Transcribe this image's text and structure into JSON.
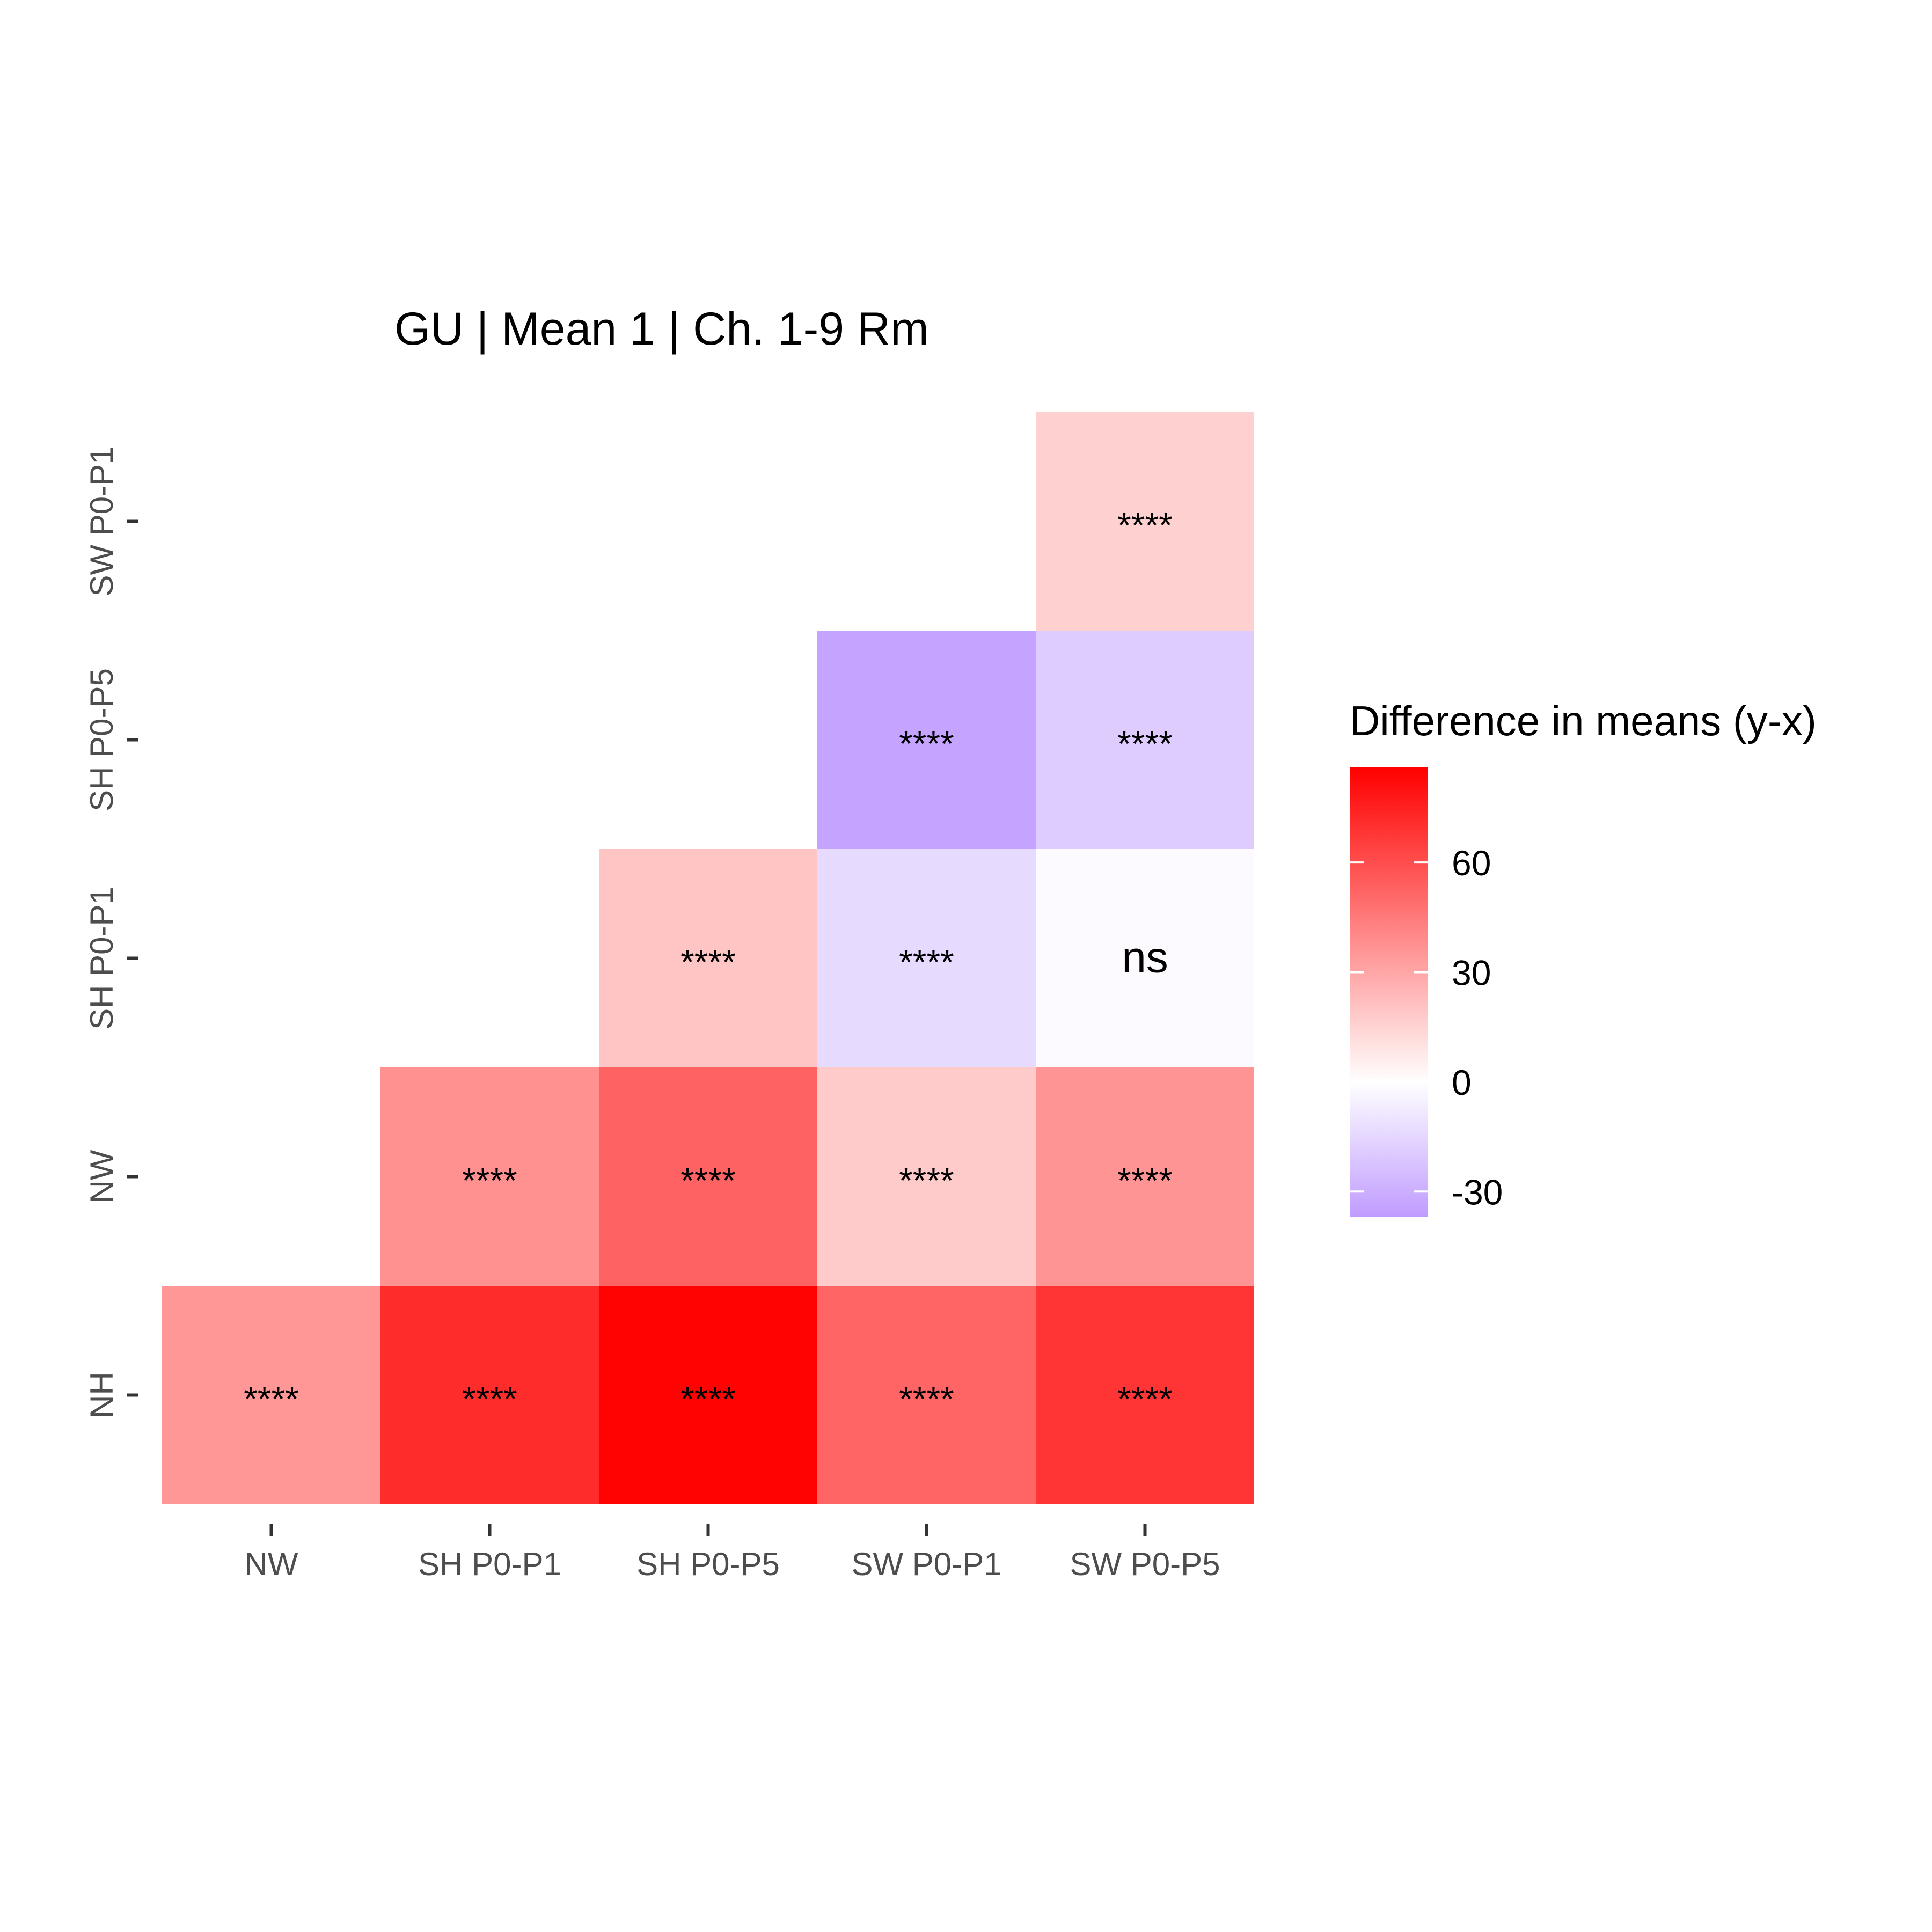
{
  "chart_data": {
    "type": "heatmap",
    "title": "GU | Mean 1 | Ch. 1-9 Rm",
    "x_categories": [
      "NW",
      "SH P0-P1",
      "SH P0-P5",
      "SW P0-P1",
      "SW P0-P5"
    ],
    "y_categories": [
      "NH",
      "NW",
      "SH P0-P1",
      "SH P0-P5",
      "SW P0-P1"
    ],
    "cells": [
      {
        "x": "NW",
        "y": "NH",
        "value": 35,
        "label": "****"
      },
      {
        "x": "SH P0-P1",
        "y": "NH",
        "value": 71,
        "label": "****"
      },
      {
        "x": "SH P0-P5",
        "y": "NH",
        "value": 85,
        "label": "****"
      },
      {
        "x": "SW P0-P1",
        "y": "NH",
        "value": 52,
        "label": "****"
      },
      {
        "x": "SW P0-P5",
        "y": "NH",
        "value": 68,
        "label": "****"
      },
      {
        "x": "SH P0-P1",
        "y": "NW",
        "value": 37,
        "label": "****"
      },
      {
        "x": "SH P0-P5",
        "y": "NW",
        "value": 53,
        "label": "****"
      },
      {
        "x": "SW P0-P1",
        "y": "NW",
        "value": 18,
        "label": "****"
      },
      {
        "x": "SW P0-P5",
        "y": "NW",
        "value": 36,
        "label": "****"
      },
      {
        "x": "SH P0-P5",
        "y": "SH P0-P1",
        "value": 20,
        "label": "****"
      },
      {
        "x": "SW P0-P1",
        "y": "SH P0-P1",
        "value": -14,
        "label": "****"
      },
      {
        "x": "SW P0-P5",
        "y": "SH P0-P1",
        "value": -2,
        "label": "ns"
      },
      {
        "x": "SW P0-P1",
        "y": "SH P0-P5",
        "value": -34,
        "label": "****"
      },
      {
        "x": "SW P0-P5",
        "y": "SH P0-P5",
        "value": -19,
        "label": "****"
      },
      {
        "x": "SW P0-P5",
        "y": "SW P0-P1",
        "value": 16,
        "label": "****"
      }
    ],
    "legend": {
      "title": "Difference in means (y-x)",
      "ticks": [
        60,
        30,
        0,
        -30
      ],
      "range": [
        -37,
        86
      ],
      "placement": "right"
    },
    "colors": {
      "low": "#c09cff",
      "mid": "#ffffff",
      "high": "#ff0000"
    },
    "grid": false
  }
}
